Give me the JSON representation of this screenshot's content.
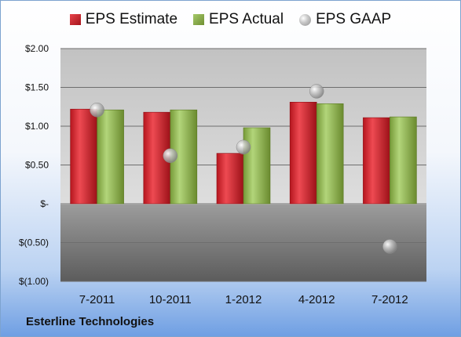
{
  "chart_data": {
    "type": "bar",
    "title": "",
    "xlabel": "",
    "ylabel": "",
    "categories": [
      "7-2011",
      "10-2011",
      "1-2012",
      "4-2012",
      "7-2012"
    ],
    "series": [
      {
        "name": "EPS Estimate",
        "kind": "bar",
        "values": [
          1.22,
          1.18,
          0.65,
          1.31,
          1.11
        ]
      },
      {
        "name": "EPS Actual",
        "kind": "bar",
        "values": [
          1.21,
          1.21,
          0.98,
          1.29,
          1.12
        ]
      },
      {
        "name": "EPS GAAP",
        "kind": "scatter",
        "values": [
          1.21,
          0.62,
          0.73,
          1.45,
          -0.55
        ]
      }
    ],
    "ylim": [
      -1.0,
      2.0
    ],
    "yticks": [
      2.0,
      1.5,
      1.0,
      0.5,
      0.0,
      -0.5,
      -1.0
    ],
    "ytick_labels": [
      "$2.00",
      "$1.50",
      "$1.00",
      "$0.50",
      "$-",
      "$(0.50)",
      "$(1.00)"
    ],
    "grid": true,
    "legend_position": "top-center",
    "colors": {
      "estimate": "#c0222b",
      "actual": "#8aad4a",
      "gaap": "#a8a8a8"
    }
  },
  "legend": {
    "estimate_label": "EPS Estimate",
    "actual_label": "EPS Actual",
    "gaap_label": "EPS GAAP"
  },
  "footer": {
    "company": "Esterline Technologies"
  }
}
